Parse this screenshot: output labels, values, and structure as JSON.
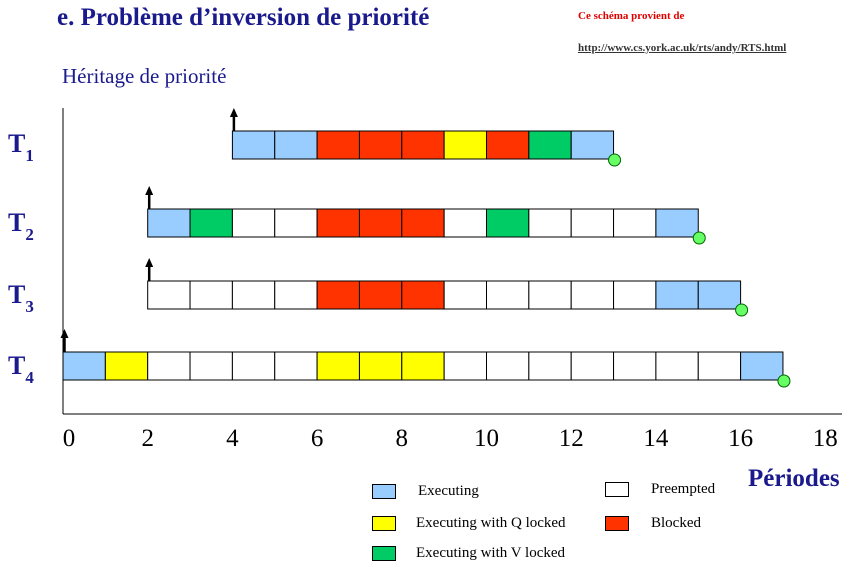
{
  "header": {
    "title": "e. Problème d’inversion de priorité",
    "source_label": "Ce schéma provient de",
    "source_url": "http://www.cs.york.ac.uk/rts/andy/RTS.html",
    "subtitle": "Héritage de priorité"
  },
  "axis": {
    "label": "Périodes",
    "ticks": [
      "0",
      "2",
      "4",
      "6",
      "8",
      "10",
      "12",
      "14",
      "16",
      "18"
    ]
  },
  "colors": {
    "executing": "#99ccff",
    "executing_q": "#ffff00",
    "executing_v": "#00cc66",
    "preempted": "#ffffff",
    "blocked": "#ff3300",
    "completion_marker": "#66ff66",
    "text_accent": "#1a1a8c"
  },
  "legend": [
    {
      "key": "executing",
      "label": "Executing"
    },
    {
      "key": "preempted",
      "label": "Preempted"
    },
    {
      "key": "executing_q",
      "label": "Executing with Q locked"
    },
    {
      "key": "blocked",
      "label": "Blocked"
    },
    {
      "key": "executing_v",
      "label": "Executing with V locked"
    }
  ],
  "tasks": [
    {
      "name": "T",
      "sub": "1",
      "release": 4,
      "slots": [
        "executing",
        "executing",
        "blocked",
        "blocked",
        "blocked",
        "executing_q",
        "blocked",
        "executing_v",
        "executing"
      ]
    },
    {
      "name": "T",
      "sub": "2",
      "release": 2,
      "slots": [
        "executing",
        "executing_v",
        "preempted",
        "preempted",
        "blocked",
        "blocked",
        "blocked",
        "preempted",
        "executing_v",
        "preempted",
        "preempted",
        "preempted",
        "executing"
      ]
    },
    {
      "name": "T",
      "sub": "3",
      "release": 2,
      "slots": [
        "preempted",
        "preempted",
        "preempted",
        "preempted",
        "blocked",
        "blocked",
        "blocked",
        "preempted",
        "preempted",
        "preempted",
        "preempted",
        "preempted",
        "executing",
        "executing"
      ]
    },
    {
      "name": "T",
      "sub": "4",
      "release": 0,
      "slots": [
        "executing",
        "executing_q",
        "preempted",
        "preempted",
        "preempted",
        "preempted",
        "executing_q",
        "executing_q",
        "executing_q",
        "preempted",
        "preempted",
        "preempted",
        "preempted",
        "preempted",
        "preempted",
        "preempted",
        "executing"
      ]
    }
  ]
}
